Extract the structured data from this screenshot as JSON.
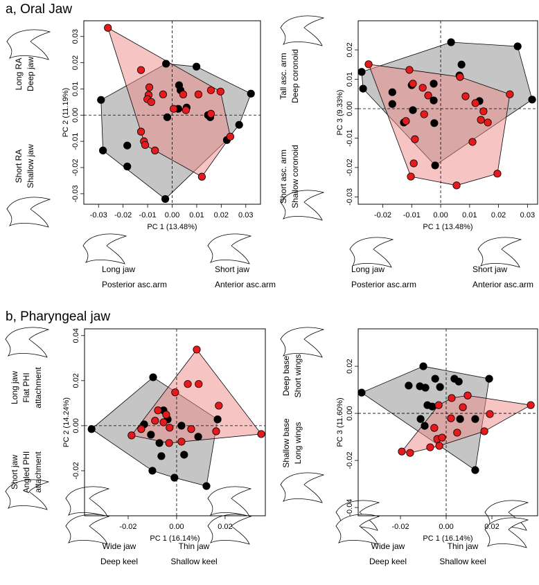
{
  "panel_titles": [
    "a, Oral Jaw",
    "b, Pharyngeal jaw"
  ],
  "chart_data": [
    {
      "type": "scatter",
      "xlabel": "PC 1 (13.48%)",
      "ylabel": "PC 2 (11.19%)",
      "xlim": [
        -0.036,
        0.036
      ],
      "ylim": [
        -0.034,
        0.036
      ],
      "xticks": [
        -0.03,
        -0.02,
        -0.01,
        {
          "value": 0,
          "label": "0.00"
        },
        0.01,
        0.02,
        0.03
      ],
      "yticks": [
        -0.03,
        -0.02,
        -0.01,
        {
          "value": 0,
          "label": "0.00"
        },
        0.01,
        0.02,
        0.03
      ],
      "series": [
        {
          "color": "#000000",
          "hull_fill": "#8c8c8c",
          "x": [
            -0.0025,
            0.0099,
            0.0321,
            -0.029,
            0.0028,
            0.0034,
            -0.002,
            0.0025,
            0.0059,
            0.0155,
            0.0273,
            0.0223,
            -0.0282,
            -0.0183,
            -0.0183,
            -0.0028,
            0.0146
          ],
          "values": [
            0.0196,
            0.0185,
            0.0082,
            0.0058,
            0.0114,
            0.0095,
            -0.0008,
            0.0024,
            0.0029,
            -0.0008,
            -0.0037,
            -0.0095,
            -0.0135,
            -0.0116,
            -0.0196,
            -0.032,
            0
          ]
        },
        {
          "color": "#e41a1c",
          "hull_fill": "#f08a8a",
          "x": [
            -0.0262,
            -0.0127,
            -0.0093,
            -0.0096,
            -0.0101,
            -0.0085,
            -0.0037,
            0.0045,
            0.0056,
            0.0006,
            0.0107,
            0.0158,
            0.0197,
            0.0158,
            0.0237,
            0.0121,
            -0.0115,
            -0.011,
            -0.007,
            -0.0127
          ],
          "values": [
            0.0333,
            0.0172,
            0.0106,
            0.0077,
            0.0061,
            0.005,
            0.0079,
            0.0079,
            0.0019,
            0.0024,
            0.0079,
            0.0095,
            0.009,
            0.0005,
            -0.0082,
            -0.0235,
            -0.01,
            -0.0114,
            -0.0135,
            -0.0063
          ]
        }
      ],
      "left_annotations": [
        [
          "Long RA",
          "Deep jaw"
        ],
        [
          "Short RA",
          "Shallow jaw"
        ]
      ],
      "bottom_annotations": [
        [
          "Long jaw",
          "Posterior asc.arm"
        ],
        [
          "Short jaw",
          "Anterior asc.arm"
        ]
      ]
    },
    {
      "type": "scatter",
      "xlabel": "PC 1 (13.48%)",
      "ylabel": "PC 3 (9.33%)",
      "xlim": [
        -0.0285,
        0.0335
      ],
      "ylim": [
        -0.0325,
        0.0299
      ],
      "xticks": [
        -0.02,
        -0.01,
        {
          "value": 0,
          "label": "0.00"
        },
        0.01,
        0.02,
        0.03
      ],
      "yticks": [
        -0.03,
        -0.02,
        -0.01,
        {
          "value": 0,
          "label": "0.00"
        },
        0.01,
        0.02
      ],
      "series": [
        {
          "color": "#000000",
          "hull_fill": "#8c8c8c",
          "x": [
            -0.0273,
            -0.0268,
            0.0036,
            0.0072,
            0.0065,
            0.0266,
            0.0316,
            -0.0167,
            -0.0167,
            -0.01,
            -0.0096,
            -0.0024,
            -0.0024,
            -0.0127,
            -0.0022,
            0.0134,
            -0.0019
          ],
          "values": [
            0.0125,
            0.0068,
            0.0226,
            0.015,
            0.0113,
            0.0212,
            0.0031,
            0.0056,
            0.0016,
            0.008,
            -0.0005,
            0.0085,
            0.0028,
            -0.0047,
            -0.0049,
            0.0026,
            -0.0193
          ]
        },
        {
          "color": "#e41a1c",
          "hull_fill": "#f08a8a",
          "x": [
            -0.0249,
            -0.0108,
            -0.0096,
            -0.0062,
            0.0067,
            0.0086,
            0.012,
            0.0139,
            0.0163,
            0.0148,
            0.0239,
            -0.0043,
            -0.0057,
            -0.012,
            -0.0089,
            -0.0093,
            -0.0103,
            0.0055,
            0.0196,
            0.011
          ],
          "values": [
            0.0151,
            0.0132,
            0.0085,
            0.0071,
            0.0108,
            0.0042,
            0.0019,
            -0.0038,
            -0.0047,
            -0.0009,
            0.0049,
            0.0045,
            -0.0019,
            -0.0042,
            -0.0104,
            -0.0186,
            -0.0231,
            -0.0261,
            -0.0221,
            -0.0113
          ]
        }
      ],
      "left_annotations": [
        [
          "Tall asc. arm",
          "Deep coronoid"
        ],
        [
          "Short asc. arm",
          "Shallow coronoid"
        ]
      ],
      "bottom_annotations": [
        [
          "Long jaw",
          "Posterior asc.arm"
        ],
        [
          "Short jaw",
          "Anterior asc.arm"
        ]
      ]
    },
    {
      "type": "scatter",
      "xlabel": "PC 1 (16.14%)",
      "ylabel": "PC 2 (14.24%)",
      "xlim": [
        -0.038,
        0.0366
      ],
      "ylim": [
        -0.04,
        0.043
      ],
      "xticks": [
        -0.02,
        {
          "value": 0,
          "label": "0.00"
        },
        0.02
      ],
      "yticks": [
        -0.02,
        {
          "value": 0,
          "label": "0.00"
        },
        0.02,
        0.04
      ],
      "series": [
        {
          "color": "#000000",
          "hull_fill": "#8c8c8c",
          "x": [
            -0.0351,
            -0.0097,
            -0.0054,
            -0.0106,
            -0.0134,
            -0.0071,
            -0.0063,
            0.0031,
            0.0089,
            0.0169,
            -0.01,
            -0.0009,
            0.0123,
            0.002,
            -0.0037
          ],
          "values": [
            -0.0015,
            0.0215,
            0.0068,
            -0.004,
            0.0006,
            -0.0077,
            -0.0135,
            -0.0129,
            -0.0049,
            0.0028,
            -0.02,
            -0.0231,
            -0.0268,
            0,
            0.0028
          ]
        },
        {
          "color": "#e41a1c",
          "hull_fill": "#f08a8a",
          "x": [
            0.0083,
            0.0046,
            0.0091,
            -0.0006,
            -0.0077,
            -0.0043,
            -0.0054,
            -0.0029,
            -0.0089,
            -0.0146,
            -0.0186,
            -0.0031,
            0.002,
            0.006,
            0.0174,
            0.0163,
            0.0349
          ],
          "values": [
            0.0338,
            0.0185,
            0.0185,
            0.0148,
            0.0068,
            0.0049,
            0.0015,
            -0.0009,
            0.0022,
            -0.0015,
            -0.0043,
            -0.0077,
            -0.0071,
            -0.0015,
            0.0089,
            -0.0025,
            -0.0037
          ]
        }
      ],
      "left_annotations": [
        [
          "Long jaw",
          "Flat PHI",
          "attachment"
        ],
        [
          "Short jaw",
          "Angled PHI",
          "attachment"
        ]
      ],
      "bottom_annotations": [
        [
          "Wide jaw",
          "Deep keel"
        ],
        [
          "Thin jaw",
          "Shallow keel"
        ]
      ]
    },
    {
      "type": "scatter",
      "xlabel": "PC 1 (16.14%)",
      "ylabel": "PC 3 (11.60%)",
      "xlim": [
        -0.0385,
        0.04
      ],
      "ylim": [
        -0.0435,
        0.0359
      ],
      "xticks": [
        -0.02,
        {
          "value": 0,
          "label": "0.00"
        },
        0.02
      ],
      "yticks": [
        -0.04,
        -0.02,
        {
          "value": 0,
          "label": "0.00"
        },
        0.02
      ],
      "series": [
        {
          "color": "#000000",
          "hull_fill": "#8c8c8c",
          "x": [
            -0.037,
            -0.01,
            -0.0164,
            -0.0115,
            -0.0091,
            -0.0048,
            -0.0027,
            0.0036,
            0.0055,
            0.0188,
            -0.0082,
            -0.0061,
            -0.0112,
            -0.0094,
            0.0061,
            0.0127,
            0.0127
          ],
          "values": [
            0.0088,
            0.02,
            0.0118,
            0.0115,
            0.0109,
            0.0147,
            0.0112,
            0.0147,
            0.0135,
            0.0147,
            0.0035,
            0.0029,
            -0.0024,
            -0.0053,
            -0.0024,
            -0.0024,
            -0.0241
          ]
        },
        {
          "color": "#e41a1c",
          "hull_fill": "#f08a8a",
          "x": [
            0.037,
            0.0024,
            0.0094,
            0.0073,
            -0.0033,
            0.0021,
            0.0191,
            0.0167,
            0.0048,
            -0.0052,
            -0.0039,
            -0.0018,
            -0.007,
            -0.003,
            -0.0194,
            -0.0158
          ],
          "values": [
            0.0035,
            0.0065,
            0.0076,
            0.0026,
            0.0035,
            -0.0021,
            -0.0003,
            -0.0076,
            -0.0082,
            -0.0062,
            -0.0109,
            -0.0103,
            -0.0144,
            -0.0138,
            -0.0162,
            -0.0168
          ]
        }
      ],
      "left_annotations": [
        [
          "Deep base",
          "Short wings"
        ],
        [
          "Shallow base",
          "Long wings"
        ]
      ],
      "bottom_annotations": [
        [
          "Wide jaw",
          "Deep keel"
        ],
        [
          "Thin jaw",
          "Shallow keel"
        ]
      ]
    }
  ]
}
